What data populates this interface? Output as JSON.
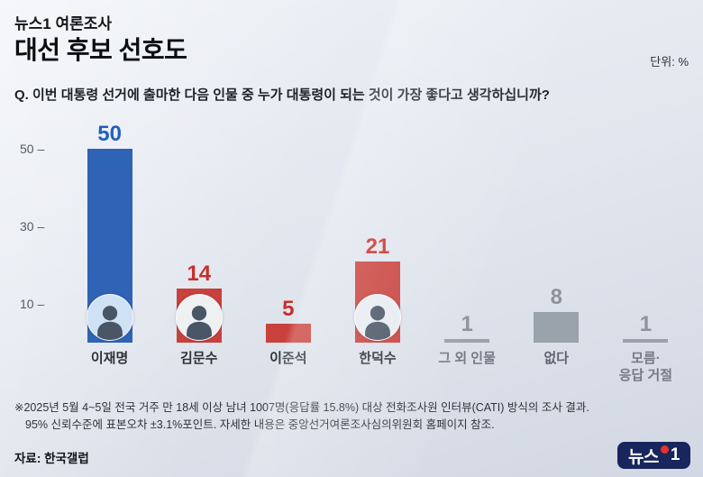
{
  "header": {
    "kicker": "뉴스1 여론조사",
    "title": "대선 후보 선호도",
    "unit_label": "단위: %"
  },
  "question": "Q. 이번 대통령 선거에 출마한 다음 인물 중 누가 대통령이 되는 것이 가장 좋다고 생각하십니까?",
  "chart_data": {
    "type": "bar",
    "title": "대선 후보 선호도",
    "unit": "%",
    "categories": [
      "이재명",
      "김문수",
      "이준석",
      "한덕수",
      "그 외 인물",
      "없다",
      "모름·응답 거절"
    ],
    "category_labels": [
      "이재명",
      "김문수",
      "이준석",
      "한덕수",
      "그 외 인물",
      "없다",
      "모름·\n응답 거절"
    ],
    "values": [
      50,
      14,
      5,
      21,
      1,
      8,
      1
    ],
    "ylim": [
      0,
      55
    ],
    "yticks": [
      10,
      30,
      50
    ],
    "grid": false,
    "legend": "none",
    "bar_colors": [
      "#2f63b5",
      "#c8413c",
      "#c8413c",
      "#c8413c",
      "#9aa2ac",
      "#9aa2ac",
      "#9aa2ac"
    ],
    "value_colors": [
      "#2160c4",
      "#c6302b",
      "#c6302b",
      "#c6302b",
      "#8d929c",
      "#8d929c",
      "#8d929c"
    ],
    "label_colors": [
      "#2e3238",
      "#2e3238",
      "#2e3238",
      "#2e3238",
      "#747a84",
      "#5e646d",
      "#747a84"
    ],
    "photo_bgs": [
      "#cfe2f5",
      "#eef0f2",
      null,
      "#e7ecf1",
      null,
      null,
      null
    ]
  },
  "footnotes": [
    "※2025년 5월 4~5일 전국 거주 만 18세 이상 남녀 1007명(응답률 15.8%) 대상 전화조사원 인터뷰(CATI) 방식의 조사 결과.",
    "95% 신뢰수준에 표본오차 ±3.1%포인트. 자세한 내용은 중앙선거여론조사심의위원회 홈페이지 참조."
  ],
  "source": "자료: 한국갤럽",
  "logo": {
    "text": "뉴스",
    "one": "1"
  }
}
